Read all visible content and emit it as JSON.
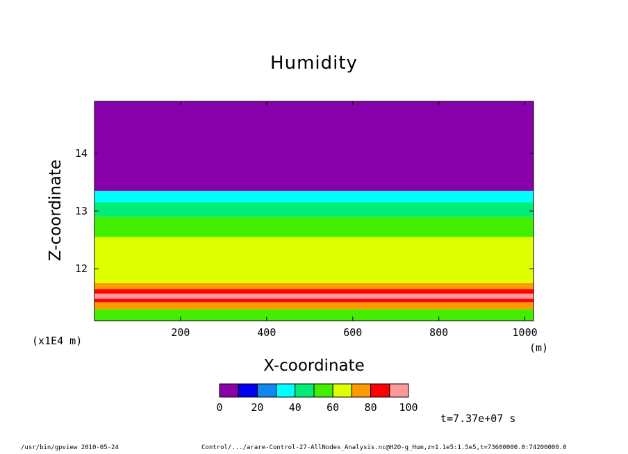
{
  "chart_data": {
    "type": "heatmap",
    "title": "Humidity",
    "xlabel": "X-coordinate",
    "ylabel": "Z-coordinate",
    "x_unit": "(m)",
    "x_scale_note": "(x1E4 m)",
    "xlim": [
      0,
      1020
    ],
    "ylim": [
      11.1,
      14.9
    ],
    "x_ticks": [
      200,
      400,
      600,
      800,
      1000
    ],
    "y_ticks": [
      12,
      13,
      14
    ],
    "colorbar": {
      "levels": [
        0,
        10,
        20,
        30,
        40,
        50,
        60,
        70,
        80,
        90,
        100
      ],
      "tick_labels": [
        "0",
        "20",
        "40",
        "60",
        "80",
        "100"
      ],
      "colors": [
        "#8800aa",
        "#0000ee",
        "#1188ee",
        "#00ffff",
        "#00ee77",
        "#44ee00",
        "#ddff00",
        "#ff9900",
        "#ff0000",
        "#ff9999"
      ]
    },
    "layers": [
      {
        "z_range": [
          11.1,
          11.3
        ],
        "value": 55
      },
      {
        "z_range": [
          11.3,
          11.42
        ],
        "value": 75
      },
      {
        "z_range": [
          11.42,
          11.48
        ],
        "value": 85
      },
      {
        "z_range": [
          11.48,
          11.57
        ],
        "value": 90
      },
      {
        "z_range": [
          11.57,
          11.65
        ],
        "value": 85
      },
      {
        "z_range": [
          11.65,
          11.75
        ],
        "value": 75
      },
      {
        "z_range": [
          11.75,
          12.55
        ],
        "value": 65
      },
      {
        "z_range": [
          12.55,
          12.9
        ],
        "value": 55
      },
      {
        "z_range": [
          12.9,
          13.15
        ],
        "value": 45
      },
      {
        "z_range": [
          13.15,
          13.35
        ],
        "value": 35
      },
      {
        "z_range": [
          13.35,
          14.9
        ],
        "value": 5
      }
    ],
    "annotation": "t=7.37e+07 s"
  },
  "footer": {
    "left": "/usr/bin/gpview   2010-05-24",
    "right": "Control/.../arare-Control-27-AllNodes_Analysis.nc@H2O-g_Hum,z=1.1e5:1.5e5,t=73600000.0:74200000.0"
  },
  "colors": {
    "background": "#ffffff",
    "frame": "#000000"
  }
}
